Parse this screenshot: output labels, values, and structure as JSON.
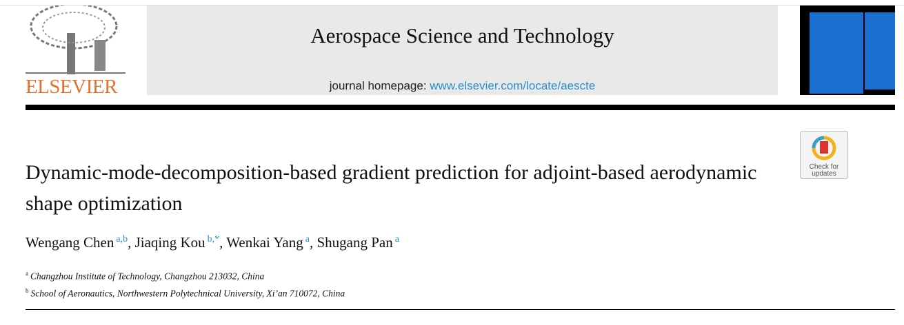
{
  "header": {
    "publisher": "ELSEVIER",
    "journal": "Aerospace Science and Technology",
    "homepage_label": "journal homepage:",
    "homepage_url": "www.elsevier.com/locate/aescte"
  },
  "badge": {
    "line1": "Check for",
    "line2": "updates"
  },
  "article": {
    "title": "Dynamic-mode-decomposition-based gradient prediction for adjoint-based aerodynamic shape optimization",
    "authors": [
      {
        "name": "Wengang Chen",
        "sup": "a,b",
        "separator": ","
      },
      {
        "name": "Jiaqing Kou",
        "sup": "b,*",
        "separator": ","
      },
      {
        "name": "Wenkai Yang",
        "sup": "a",
        "separator": ","
      },
      {
        "name": "Shugang Pan",
        "sup": "a"
      }
    ],
    "affiliations": [
      {
        "label": "a",
        "text": "Changzhou Institute of Technology, Changzhou 213032, China"
      },
      {
        "label": "b",
        "text": "School of Aeronautics, Northwestern Polytechnical University, Xi’an 710072, China"
      }
    ]
  }
}
